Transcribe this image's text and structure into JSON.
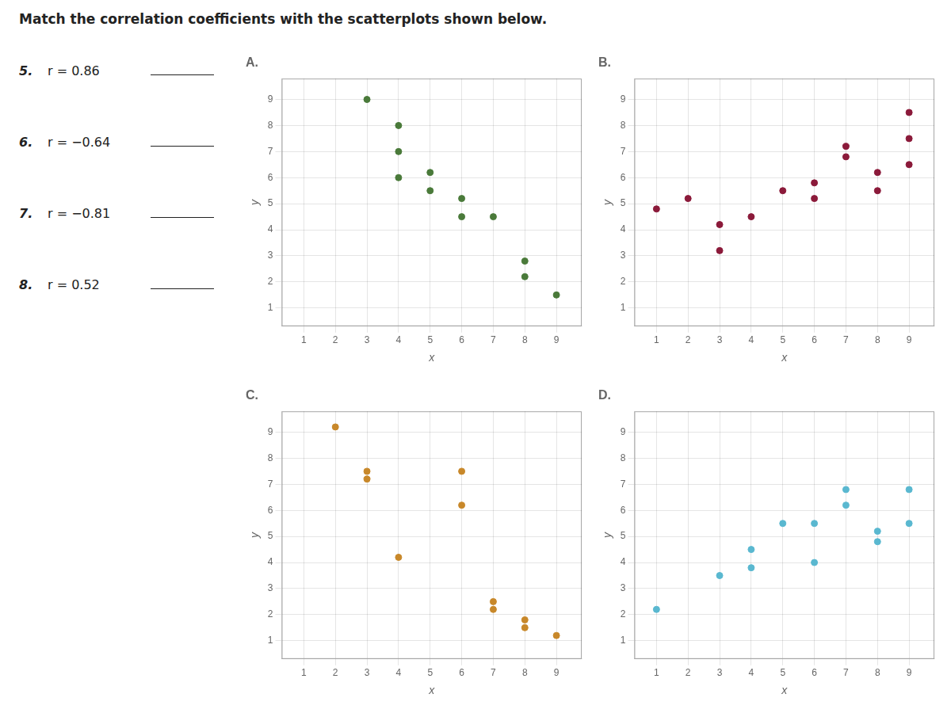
{
  "title": "Match the correlation coefficients with the scatterplots shown below.",
  "annotations": [
    [
      "5.",
      "r = 0.86"
    ],
    [
      "6.",
      "r = −0.64"
    ],
    [
      "7.",
      "r = −0.81"
    ],
    [
      "8.",
      "r = 0.52"
    ]
  ],
  "chart_data": [
    {
      "type": "scatter",
      "title": "A.",
      "x_label": "x",
      "y_label": "y",
      "x": [
        3,
        4,
        4,
        4,
        5,
        5,
        6,
        6,
        7,
        8,
        8,
        9
      ],
      "series": [
        {
          "color": "#4a7a3a",
          "values": [
            9,
            8,
            7,
            6,
            6.2,
            5.5,
            5.2,
            4.5,
            4.5,
            2.2,
            2.8,
            1.5
          ]
        }
      ],
      "xlim": [
        0.3,
        9.8
      ],
      "ylim": [
        0.3,
        9.8
      ],
      "xticks": [
        1,
        2,
        3,
        4,
        5,
        6,
        7,
        8,
        9
      ],
      "yticks": [
        1,
        2,
        3,
        4,
        5,
        6,
        7,
        8,
        9
      ],
      "grid": true
    },
    {
      "type": "scatter",
      "title": "B.",
      "x_label": "x",
      "y_label": "y",
      "x": [
        1,
        2,
        3,
        3,
        4,
        5,
        6,
        6,
        7,
        7,
        8,
        8,
        9,
        9,
        9
      ],
      "series": [
        {
          "color": "#8b1a3a",
          "values": [
            4.8,
            5.2,
            3.2,
            4.2,
            4.5,
            5.5,
            5.2,
            5.8,
            6.8,
            7.2,
            6.2,
            5.5,
            7.5,
            8.5,
            6.5
          ]
        }
      ],
      "xlim": [
        0.3,
        9.8
      ],
      "ylim": [
        0.3,
        9.8
      ],
      "xticks": [
        1,
        2,
        3,
        4,
        5,
        6,
        7,
        8,
        9
      ],
      "yticks": [
        1,
        2,
        3,
        4,
        5,
        6,
        7,
        8,
        9
      ],
      "grid": true
    },
    {
      "type": "scatter",
      "title": "C.",
      "x_label": "x",
      "y_label": "y",
      "x": [
        2,
        3,
        3,
        4,
        6,
        6,
        7,
        7,
        8,
        8,
        9
      ],
      "series": [
        {
          "color": "#c8882a",
          "values": [
            9.2,
            7.2,
            7.5,
            4.2,
            6.2,
            7.5,
            2.2,
            2.5,
            1.5,
            1.8,
            1.2
          ]
        }
      ],
      "xlim": [
        0.3,
        9.8
      ],
      "ylim": [
        0.3,
        9.8
      ],
      "xticks": [
        1,
        2,
        3,
        4,
        5,
        6,
        7,
        8,
        9
      ],
      "yticks": [
        1,
        2,
        3,
        4,
        5,
        6,
        7,
        8,
        9
      ],
      "grid": true
    },
    {
      "type": "scatter",
      "title": "D.",
      "x_label": "x",
      "y_label": "y",
      "x": [
        1,
        3,
        4,
        4,
        5,
        6,
        6,
        7,
        7,
        8,
        8,
        9,
        9
      ],
      "series": [
        {
          "color": "#5ab8d0",
          "values": [
            2.2,
            3.5,
            3.8,
            4.5,
            5.5,
            4.0,
            5.5,
            6.2,
            6.8,
            4.8,
            5.2,
            5.5,
            6.8
          ]
        }
      ],
      "xlim": [
        0.3,
        9.8
      ],
      "ylim": [
        0.3,
        9.8
      ],
      "xticks": [
        1,
        2,
        3,
        4,
        5,
        6,
        7,
        8,
        9
      ],
      "yticks": [
        1,
        2,
        3,
        4,
        5,
        6,
        7,
        8,
        9
      ],
      "grid": true
    }
  ]
}
